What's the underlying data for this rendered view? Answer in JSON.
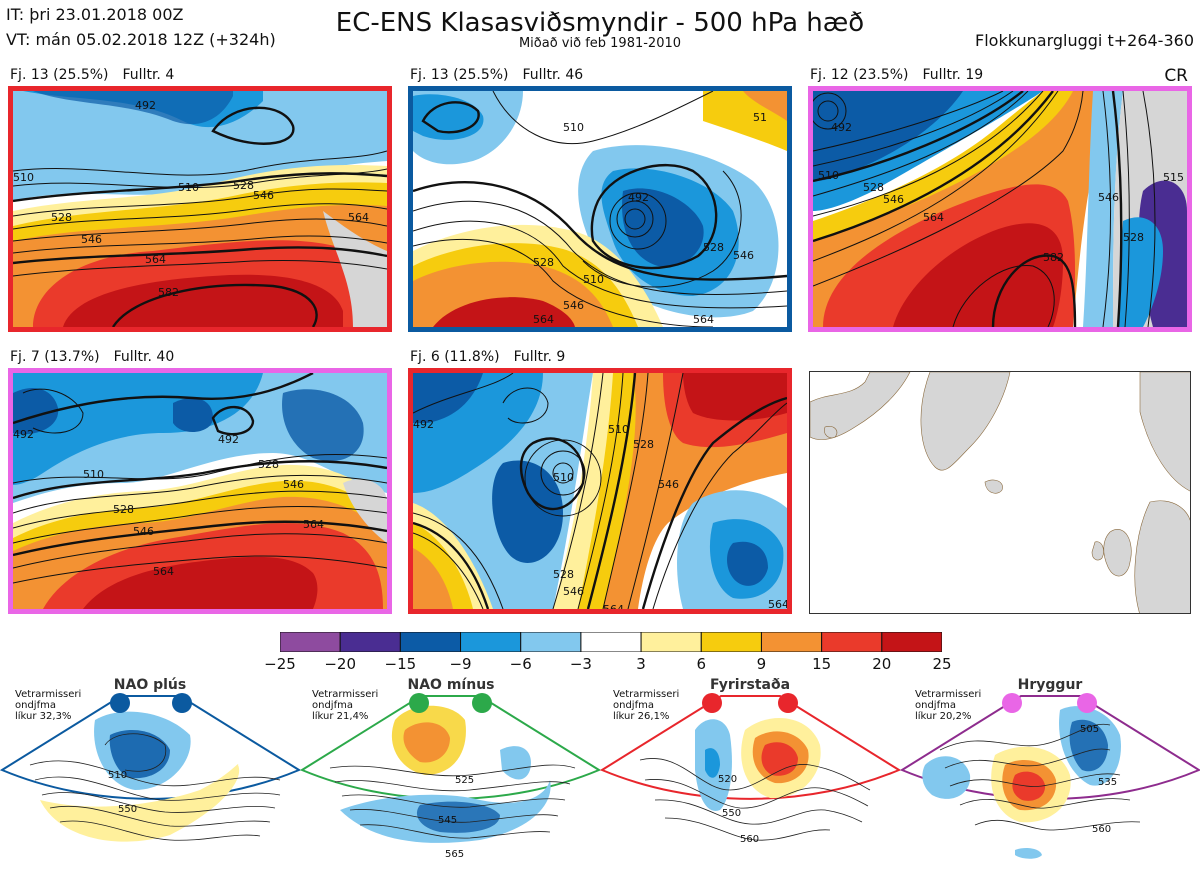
{
  "header": {
    "issue_time": "IT: þri 23.01.2018 00Z",
    "valid_time": "VT: mán 05.02.2018 12Z  (+324h)",
    "title": "EC-ENS Klasasviðsmyndir - 500 hPa hæð",
    "subtitle": "Miðað við feb 1981-2010",
    "window": "Flokkunargluggi t+264-360",
    "corner": "CR"
  },
  "clusters": [
    {
      "label": "Fj. 13 (25.5%)",
      "rep": "Fulltr. 4",
      "regime_color": "#e8262c",
      "contour_labels": [
        "492",
        "510",
        "528",
        "546",
        "564",
        "582",
        "510",
        "528",
        "546",
        "564"
      ]
    },
    {
      "label": "Fj. 13 (25.5%)",
      "rep": "Fulltr. 46",
      "regime_color": "#0b5aa0",
      "contour_labels": [
        "510",
        "492",
        "528",
        "510",
        "546",
        "564",
        "528",
        "546",
        "564",
        "51"
      ]
    },
    {
      "label": "Fj. 12 (23.5%)",
      "rep": "Fulltr. 19",
      "regime_color": "#e966e6",
      "contour_labels": [
        "492",
        "510",
        "528",
        "546",
        "564",
        "582",
        "546",
        "528",
        "515"
      ]
    },
    {
      "label": "Fj. 7 (13.7%)",
      "rep": "Fulltr. 40",
      "regime_color": "#e966e6",
      "contour_labels": [
        "492",
        "510",
        "528",
        "546",
        "564",
        "492",
        "528",
        "546",
        "564"
      ]
    },
    {
      "label": "Fj. 6 (11.8%)",
      "rep": "Fulltr. 9",
      "regime_color": "#e8262c",
      "contour_labels": [
        "492",
        "510",
        "528",
        "546",
        "564",
        "528",
        "546",
        "510",
        "564"
      ]
    }
  ],
  "chart_data": {
    "type": "heatmap",
    "title": "EC-ENS Klasasviðsmyndir - 500 hPa hæð",
    "colorbar": {
      "ticks": [
        "−25",
        "−20",
        "−15",
        "−9",
        "−6",
        "−3",
        "3",
        "6",
        "9",
        "15",
        "20",
        "25"
      ],
      "bins": [
        {
          "from": -25,
          "to": -20,
          "color": "#8e4b9f"
        },
        {
          "from": -20,
          "to": -15,
          "color": "#4a2d92"
        },
        {
          "from": -15,
          "to": -9,
          "color": "#0c5ba6"
        },
        {
          "from": -9,
          "to": -6,
          "color": "#1b97db"
        },
        {
          "from": -6,
          "to": -3,
          "color": "#82c8ee"
        },
        {
          "from": -3,
          "to": 3,
          "color": "#ffffff"
        },
        {
          "from": 3,
          "to": 6,
          "color": "#fff09c"
        },
        {
          "from": 6,
          "to": 9,
          "color": "#f6cc0e"
        },
        {
          "from": 9,
          "to": 15,
          "color": "#f39233"
        },
        {
          "from": 15,
          "to": 20,
          "color": "#ea3a2b"
        },
        {
          "from": 20,
          "to": 25,
          "color": "#c41417"
        }
      ]
    },
    "clusters": [
      {
        "cluster": 13,
        "percent": 25.5,
        "representative": 4
      },
      {
        "cluster": 13,
        "percent": 25.5,
        "representative": 46
      },
      {
        "cluster": 12,
        "percent": 23.5,
        "representative": 19
      },
      {
        "cluster": 7,
        "percent": 13.7,
        "representative": 40
      },
      {
        "cluster": 6,
        "percent": 11.8,
        "representative": 9
      }
    ]
  },
  "regimes": [
    {
      "name": "NAO plús",
      "note": [
        "Vetrarmisseri",
        "ondjfma",
        "líkur 32,3%"
      ],
      "color": "#0b5aa0",
      "contour_labels": [
        "510",
        "550"
      ]
    },
    {
      "name": "NAO mínus",
      "note": [
        "Vetrarmisseri",
        "ondjfma",
        "líkur 21,4%"
      ],
      "color": "#2ca94a",
      "contour_labels": [
        "525",
        "545",
        "565"
      ]
    },
    {
      "name": "Fyrirstaða",
      "note": [
        "Vetrarmisseri",
        "ondjfma",
        "líkur 26,1%"
      ],
      "color": "#e8262c",
      "contour_labels": [
        "520",
        "550",
        "560"
      ]
    },
    {
      "name": "Hryggur",
      "note": [
        "Vetrarmisseri",
        "ondjfma",
        "líkur 20,2%"
      ],
      "color": "#e966e6",
      "contour_labels": [
        "505",
        "535",
        "560"
      ]
    }
  ]
}
